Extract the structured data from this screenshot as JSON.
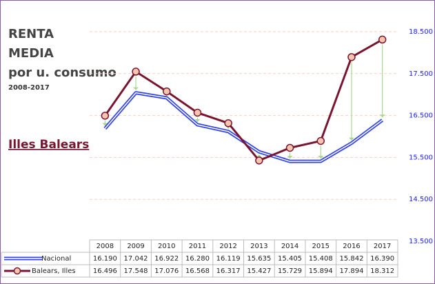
{
  "chart_data": {
    "type": "line",
    "title_lines": [
      "RENTA",
      "MEDIA",
      "por u. consumo"
    ],
    "subtitle": "2008-2017",
    "annotation": "Illes Balears",
    "categories": [
      "2008",
      "2009",
      "2010",
      "2011",
      "2012",
      "2013",
      "2014",
      "2015",
      "2016",
      "2017"
    ],
    "series": [
      {
        "name": "Nacional",
        "color": "#3344ee",
        "values": [
          16190,
          17042,
          16922,
          16280,
          16119,
          15635,
          15405,
          15408,
          15842,
          16390
        ],
        "value_labels": [
          "16.190",
          "17.042",
          "16.922",
          "16.280",
          "16.119",
          "15.635",
          "15.405",
          "15.408",
          "15.842",
          "16.390"
        ]
      },
      {
        "name": "Balears, Illes",
        "color": "#7a1530",
        "values": [
          16496,
          17548,
          17076,
          16568,
          16317,
          15427,
          15729,
          15894,
          17894,
          18312
        ],
        "value_labels": [
          "16.496",
          "17.548",
          "17.076",
          "16.568",
          "16.317",
          "15.427",
          "15.729",
          "15.894",
          "17.894",
          "18.312"
        ]
      }
    ],
    "ylim": [
      13500,
      18500
    ],
    "yticks": [
      {
        "value": 13500,
        "label": "13.500"
      },
      {
        "value": 14500,
        "label": "14.500"
      },
      {
        "value": 15500,
        "label": "15.500"
      },
      {
        "value": 16500,
        "label": "16.500"
      },
      {
        "value": 17500,
        "label": "17.500"
      },
      {
        "value": 18500,
        "label": "18.500"
      }
    ],
    "grid": true
  }
}
